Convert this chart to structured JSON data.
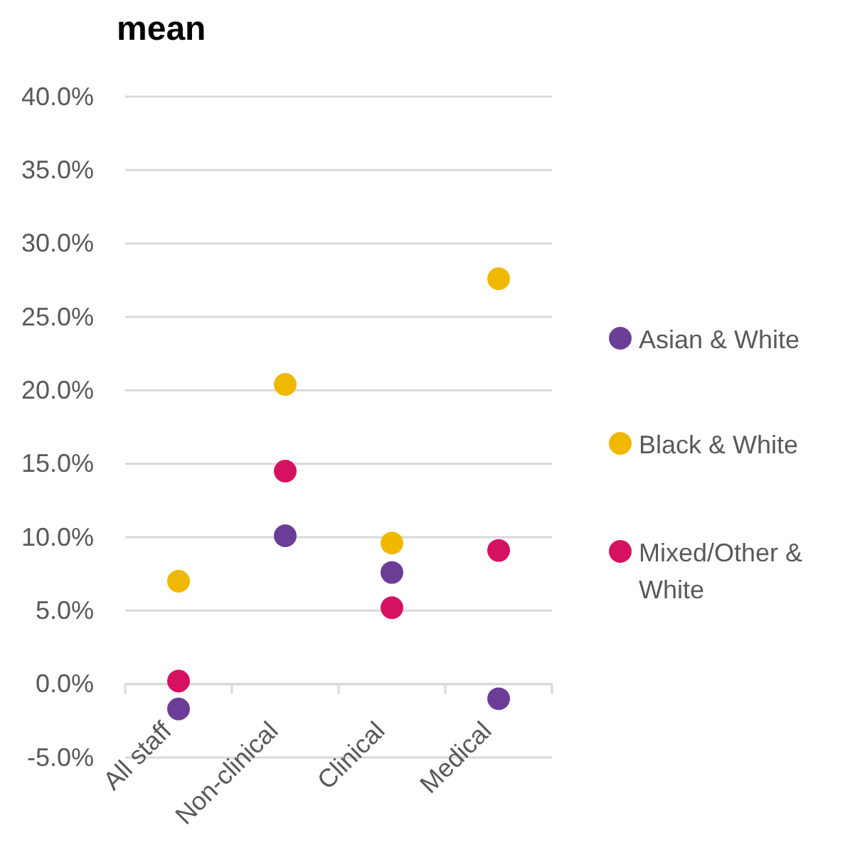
{
  "chart_data": {
    "type": "scatter",
    "title": "mean",
    "categories": [
      "All staff",
      "Non-clinical",
      "Clinical",
      "Medical"
    ],
    "series": [
      {
        "name": "Asian & White",
        "color": "#6a3d96",
        "values": [
          -1.7,
          10.1,
          7.6,
          -1.0
        ]
      },
      {
        "name": "Black & White",
        "color": "#f0b800",
        "values": [
          7.0,
          20.4,
          9.6,
          27.6
        ]
      },
      {
        "name": "Mixed/Other & White",
        "color": "#d6115f",
        "values": [
          0.2,
          14.5,
          5.2,
          9.1
        ]
      }
    ],
    "ylim": [
      -5,
      40
    ],
    "yticks": [
      {
        "value": -5,
        "label": "-5.0%"
      },
      {
        "value": 0,
        "label": "0.0%"
      },
      {
        "value": 5,
        "label": "5.0%"
      },
      {
        "value": 10,
        "label": "10.0%"
      },
      {
        "value": 15,
        "label": "15.0%"
      },
      {
        "value": 20,
        "label": "20.0%"
      },
      {
        "value": 25,
        "label": "25.0%"
      },
      {
        "value": 30,
        "label": "30.0%"
      },
      {
        "value": 35,
        "label": "35.0%"
      },
      {
        "value": 40,
        "label": "40.0%"
      }
    ],
    "grid": "y",
    "legend": "right",
    "marker": "circle"
  }
}
